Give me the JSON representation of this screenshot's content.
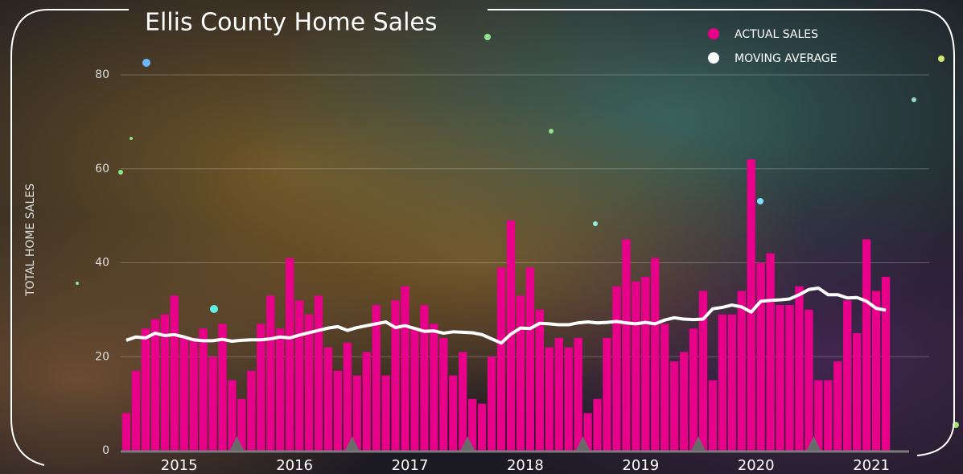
{
  "chart_data": {
    "type": "bar",
    "title": "Ellis County Home Sales",
    "y_label": "TOTAL HOME SALES",
    "categories": [
      null,
      null,
      null,
      null,
      null,
      null,
      null,
      null,
      null,
      null,
      null,
      null,
      null,
      null,
      null,
      null,
      null,
      null,
      null,
      null,
      null,
      null,
      null,
      null,
      null,
      null,
      null,
      null,
      null,
      null,
      null,
      null,
      null,
      null,
      null,
      null,
      null,
      null,
      null,
      null,
      null,
      null,
      null,
      null,
      null,
      null,
      null,
      null,
      null,
      null,
      null,
      null,
      null,
      null,
      null,
      null,
      null,
      null,
      null,
      null,
      null,
      null,
      null,
      null,
      null,
      null,
      null,
      null,
      null,
      null,
      null,
      null,
      null,
      null,
      null,
      null,
      null,
      null,
      null,
      null
    ],
    "series": [
      {
        "name": "ACTUAL SALES",
        "type": "bar",
        "color": "#e8008a",
        "values": [
          8,
          17,
          26,
          28,
          29,
          33,
          24,
          24,
          26,
          20,
          27,
          15,
          11,
          17,
          27,
          33,
          26,
          41,
          32,
          29,
          33,
          22,
          17,
          23,
          16,
          21,
          31,
          16,
          32,
          35,
          26,
          31,
          27,
          24,
          16,
          21,
          11,
          10,
          20,
          39,
          49,
          33,
          39,
          30,
          22,
          24,
          22,
          24,
          8,
          11,
          24,
          35,
          45,
          36,
          37,
          41,
          27,
          19,
          21,
          26,
          34,
          15,
          29,
          29,
          34,
          62,
          40,
          42,
          31,
          31,
          35,
          30,
          15,
          15,
          19,
          32,
          25,
          45,
          34,
          37
        ]
      },
      {
        "name": "MOVING AVERAGE",
        "type": "line",
        "color": "#ffffff",
        "values": [
          23.5,
          24.2,
          24,
          25,
          24.5,
          24.7,
          24.2,
          23.6,
          23.4,
          23.4,
          23.7,
          23.3,
          23.5,
          23.6,
          23.6,
          23.8,
          24.2,
          24,
          24.6,
          25.1,
          25.6,
          26.1,
          26.4,
          25.6,
          26.2,
          26.6,
          27,
          27.4,
          26.2,
          26.6,
          26,
          25.4,
          25.5,
          25,
          25.3,
          25.2,
          25.1,
          24.7,
          23.8,
          22.9,
          24.8,
          26.1,
          26,
          27.1,
          27,
          26.8,
          26.8,
          27.2,
          27.4,
          27.2,
          27.3,
          27.5,
          27.2,
          27,
          27.3,
          27,
          27.8,
          28.3,
          28,
          27.9,
          28,
          30.2,
          30.5,
          31,
          30.6,
          29.5,
          31.8,
          32,
          32.1,
          32.3,
          33.2,
          34.3,
          34.6,
          33.2,
          33.2,
          32.5,
          32.6,
          31.8,
          30.3,
          29.9
        ]
      }
    ],
    "ylim": [
      0,
      80
    ],
    "yticks": [
      0,
      20,
      40,
      60,
      80
    ],
    "xticks": [
      {
        "value": 5.5,
        "label": "2015"
      },
      {
        "value": 17.5,
        "label": "2016"
      },
      {
        "value": 29.5,
        "label": "2017"
      },
      {
        "value": 41.5,
        "label": "2018"
      },
      {
        "value": 53.5,
        "label": "2019"
      },
      {
        "value": 65.5,
        "label": "2020"
      },
      {
        "value": 77.5,
        "label": "2021"
      }
    ],
    "grid": true,
    "legend": "top-right"
  }
}
